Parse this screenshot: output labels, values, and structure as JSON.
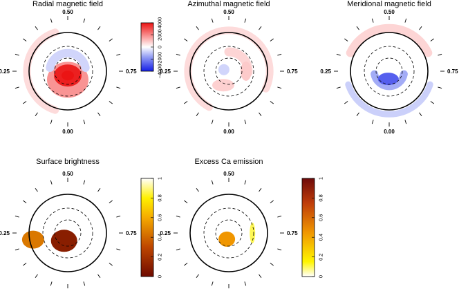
{
  "chart_data": [
    {
      "type": "heatmap",
      "projection": "polar",
      "title": "Radial magnetic field",
      "phase_labels": {
        "top": "0.50",
        "left": "0.25",
        "right": "0.75",
        "bottom": "0.00"
      },
      "colorbar": {
        "scheme": "blue-white-red",
        "range": [
          -4000,
          4000
        ],
        "ticks": [
          4000,
          2000,
          0,
          -2000,
          -4000
        ],
        "tick_labels": [
          "4000",
          "2000",
          "0",
          "−2000",
          "−4000"
        ]
      },
      "features": [
        {
          "region": "polar spot",
          "phase": 0.0,
          "colatitude_deg": 10,
          "peak": 3800
        },
        {
          "region": "positive ring",
          "phase": 0.0,
          "colatitude_deg": 20,
          "peak": 1800
        },
        {
          "region": "negative arc",
          "phase": 0.5,
          "colatitude_deg": 42,
          "peak": -700
        },
        {
          "region": "low-latitude band",
          "phase": 0.25,
          "colatitude_deg": 95,
          "peak": 600
        }
      ]
    },
    {
      "type": "heatmap",
      "projection": "polar",
      "title": "Azimuthal magnetic field",
      "phase_labels": {
        "top": "0.50",
        "left": "0.25",
        "right": "0.75",
        "bottom": "0.00"
      },
      "colorbar": {
        "scheme": "blue-white-red",
        "range": [
          -4000,
          4000
        ]
      },
      "features": [
        {
          "region": "low-latitude band",
          "phase": 0.25,
          "colatitude_deg": 95,
          "peak": 600
        },
        {
          "region": "ring",
          "phase": 0.62,
          "colatitude_deg": 45,
          "peak": 700
        },
        {
          "region": "spot",
          "phase": 0.75,
          "colatitude_deg": 40,
          "peak": 900
        },
        {
          "region": "spot",
          "phase": 0.06,
          "colatitude_deg": 35,
          "peak": 800
        },
        {
          "region": "near pole",
          "phase": 0.3,
          "colatitude_deg": 12,
          "peak": -700
        }
      ]
    },
    {
      "type": "heatmap",
      "projection": "polar",
      "title": "Meridional magnetic field",
      "phase_labels": {
        "top": "0.50",
        "left": "0.25",
        "right": "0.75",
        "bottom": "0.00"
      },
      "colorbar": {
        "scheme": "blue-white-red",
        "range": [
          -4000,
          4000
        ]
      },
      "features": [
        {
          "region": "high-latitude band",
          "phase": 0.5,
          "colatitude_deg": 100,
          "peak": 700
        },
        {
          "region": "polar spot",
          "phase": 0.02,
          "colatitude_deg": 18,
          "peak": -2800
        },
        {
          "region": "negative band",
          "phase": 0.1,
          "colatitude_deg": 35,
          "peak": -1400
        },
        {
          "region": "low-latitude arc",
          "phase": 0.0,
          "colatitude_deg": 100,
          "peak": -800
        }
      ]
    },
    {
      "type": "heatmap",
      "projection": "polar",
      "title": "Surface brightness",
      "phase_labels": {
        "top": "0.50",
        "left": "0.25",
        "right": "0.75",
        "bottom": "0.00"
      },
      "colorbar": {
        "scheme": "dark-red-yellow-white",
        "range": [
          0,
          1
        ],
        "ticks": [
          1,
          0.8,
          0.6,
          0.4,
          0.2,
          0
        ],
        "tick_labels": [
          "1",
          "0.8",
          "0.6",
          "0.4",
          "0.2",
          "0"
        ]
      },
      "features": [
        {
          "region": "dark polar spot",
          "phase": 0.07,
          "colatitude_deg": 20,
          "brightness": 0.1
        },
        {
          "region": "spot",
          "phase": 0.22,
          "colatitude_deg": 82,
          "brightness": 0.45
        }
      ]
    },
    {
      "type": "heatmap",
      "projection": "polar",
      "title": "Excess Ca emission",
      "phase_labels": {
        "top": "0.50",
        "left": "0.25",
        "right": "0.75",
        "bottom": "0.00"
      },
      "colorbar": {
        "scheme": "yellow-red-brown",
        "range": [
          0,
          1
        ],
        "ticks": [
          1,
          0.8,
          0.6,
          0.4,
          0.2,
          0
        ],
        "tick_labels": [
          "1",
          "0.8",
          "0.6",
          "0.4",
          "0.2",
          "0"
        ]
      },
      "features": [
        {
          "region": "polar patch",
          "phase": 0.05,
          "colatitude_deg": 15,
          "emission": 0.45
        },
        {
          "region": "small patch",
          "phase": 0.75,
          "colatitude_deg": 55,
          "emission": 0.1
        }
      ]
    }
  ]
}
